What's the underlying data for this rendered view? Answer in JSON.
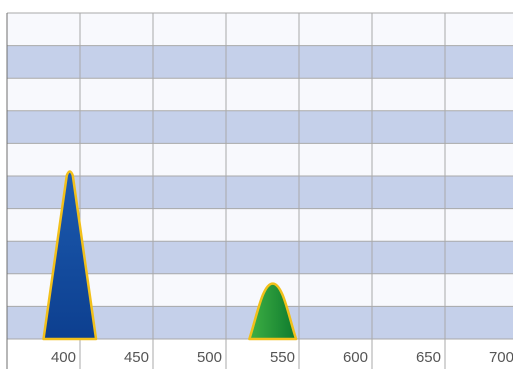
{
  "chart_data": {
    "type": "area",
    "title": "",
    "xlabel": "",
    "ylabel": "",
    "x_ticks": [
      400,
      450,
      500,
      550,
      600,
      650,
      700
    ],
    "xlim": [
      350,
      702
    ],
    "ylim": [
      0,
      1
    ],
    "grid": true,
    "band_colors": [
      "#c5d0ea",
      "#f8f9fd"
    ],
    "grid_color": "#a9a9a9",
    "series": [
      {
        "center": 393,
        "x_start": 375,
        "x_end": 411,
        "peak": 0.52,
        "fill_top": "#1c5bb0",
        "fill_bottom": "#0d3f8f",
        "stroke": "#f2c01a"
      },
      {
        "center": 532,
        "x_start": 516,
        "x_end": 548,
        "peak": 0.17,
        "fill_left": "#3fb044",
        "fill_right": "#0e7a2e",
        "stroke": "#f2c01a"
      }
    ]
  }
}
